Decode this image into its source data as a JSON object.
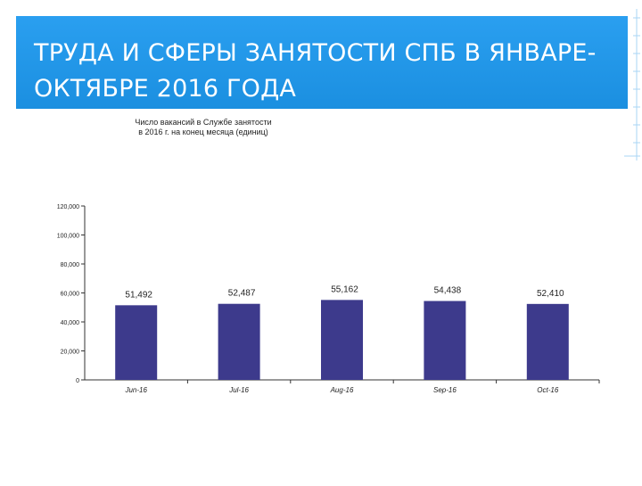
{
  "slide": {
    "title": "ТРУДА И СФЕРЫ ЗАНЯТОСТИ  СПБ В ЯНВАРЕ-ОКТЯБРЕ 2016 ГОДА",
    "title_line1": "ТРУДА И СФЕРЫ ЗАНЯТОСТИ  СПБ В ЯНВАРЕ-",
    "title_line2": "ОКТЯБРЕ 2016 ГОДА",
    "header_color": "#1f97e8",
    "title_color": "#ffffff"
  },
  "chart_data": {
    "type": "bar",
    "title_line1": "Число вакансий в Службе занятости",
    "title_line2": "в 2016 г. на конец месяца (единиц)",
    "categories": [
      "Jun-16",
      "Jul-16",
      "Aug-16",
      "Sep-16",
      "Oct-16"
    ],
    "values": [
      51492,
      52487,
      55162,
      54438,
      52410
    ],
    "value_labels": [
      "51,492",
      "52,487",
      "55,162",
      "54,438",
      "52,410"
    ],
    "ylim": [
      0,
      120000
    ],
    "yticks": [
      0,
      20000,
      40000,
      60000,
      80000,
      100000,
      120000
    ],
    "ytick_labels": [
      "0",
      "20,000",
      "40,000",
      "60,000",
      "80,000",
      "100,000",
      "120,000"
    ],
    "bar_color": "#3d3a8c",
    "grid": false,
    "legend": "none"
  }
}
